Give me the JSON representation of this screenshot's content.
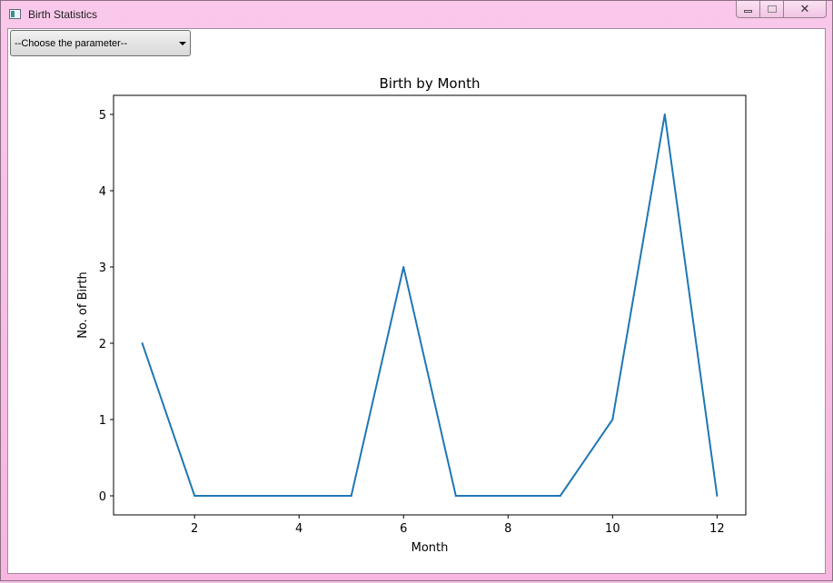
{
  "window": {
    "title": "Birth Statistics",
    "icon": "app-window-icon",
    "controls": [
      "minimize-icon",
      "maximize-icon",
      "close-icon"
    ],
    "close_glyph": "✕"
  },
  "toolbar": {
    "parameter_select": {
      "selected": "--Choose the parameter--"
    }
  },
  "chart_data": {
    "type": "line",
    "title": "Birth by Month",
    "xlabel": "Month",
    "ylabel": "No. of Birth",
    "x": [
      1,
      2,
      3,
      4,
      5,
      6,
      7,
      8,
      9,
      10,
      11,
      12
    ],
    "series": [
      {
        "values": [
          2,
          0,
          0,
          0,
          0,
          3,
          0,
          0,
          0,
          1,
          5,
          0
        ],
        "color": "#1f77b4"
      }
    ],
    "xticks": [
      2,
      4,
      6,
      8,
      10,
      12
    ],
    "yticks": [
      0,
      1,
      2,
      3,
      4,
      5
    ],
    "xlim": [
      0.45,
      12.55
    ],
    "ylim": [
      -0.25,
      5.25
    ],
    "grid": false,
    "legend": "none"
  }
}
